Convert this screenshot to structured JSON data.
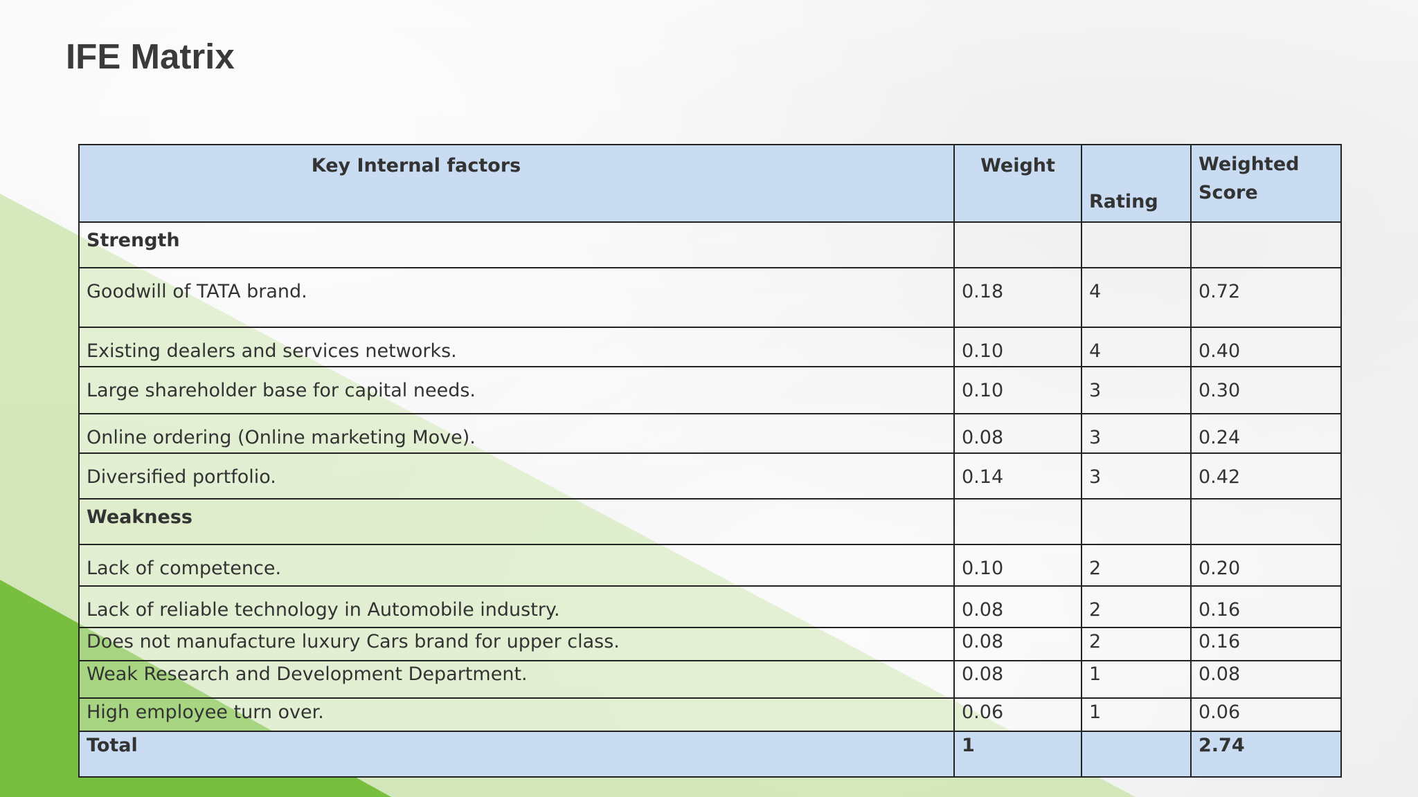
{
  "slide": {
    "title": "IFE Matrix"
  },
  "colors": {
    "header_fill": "#c9dcf2",
    "accent_green": "#78bf3f",
    "light_green": "#c9e3a8",
    "title_text": "#3a3a3a"
  },
  "table": {
    "headers": {
      "factor": "Key Internal factors",
      "weight": "Weight",
      "rating": "Rating",
      "score": "Weighted Score"
    },
    "sections": [
      {
        "label": "Strength",
        "rows": [
          {
            "factor": "Goodwill of TATA brand.",
            "weight": "0.18",
            "rating": "4",
            "score": "0.72"
          },
          {
            "factor": "Existing dealers and services networks.",
            "weight": "0.10",
            "rating": "4",
            "score": "0.40"
          },
          {
            "factor": "Large shareholder base for capital needs.",
            "weight": "0.10",
            "rating": "3",
            "score": "0.30"
          },
          {
            "factor": "Online ordering (Online marketing Move).",
            "weight": "0.08",
            "rating": "3",
            "score": "0.24"
          },
          {
            "factor": "Diversified portfolio.",
            "weight": "0.14",
            "rating": "3",
            "score": "0.42"
          }
        ]
      },
      {
        "label": "Weakness",
        "rows": [
          {
            "factor": "Lack of competence.",
            "weight": "0.10",
            "rating": "2",
            "score": "0.20"
          },
          {
            "factor": "Lack of reliable technology in Automobile industry.",
            "weight": "0.08",
            "rating": "2",
            "score": "0.16"
          },
          {
            "factor": "Does not manufacture luxury Cars brand for upper class.",
            "weight": "0.08",
            "rating": "2",
            "score": "0.16"
          },
          {
            "factor": "Weak Research and Development Department.",
            "weight": "0.08",
            "rating": "1",
            "score": "0.08"
          },
          {
            "factor": "High employee turn over.",
            "weight": "0.06",
            "rating": "1",
            "score": "0.06"
          }
        ]
      }
    ],
    "total": {
      "label": "Total",
      "weight": "1",
      "rating": "",
      "score": "2.74"
    }
  }
}
